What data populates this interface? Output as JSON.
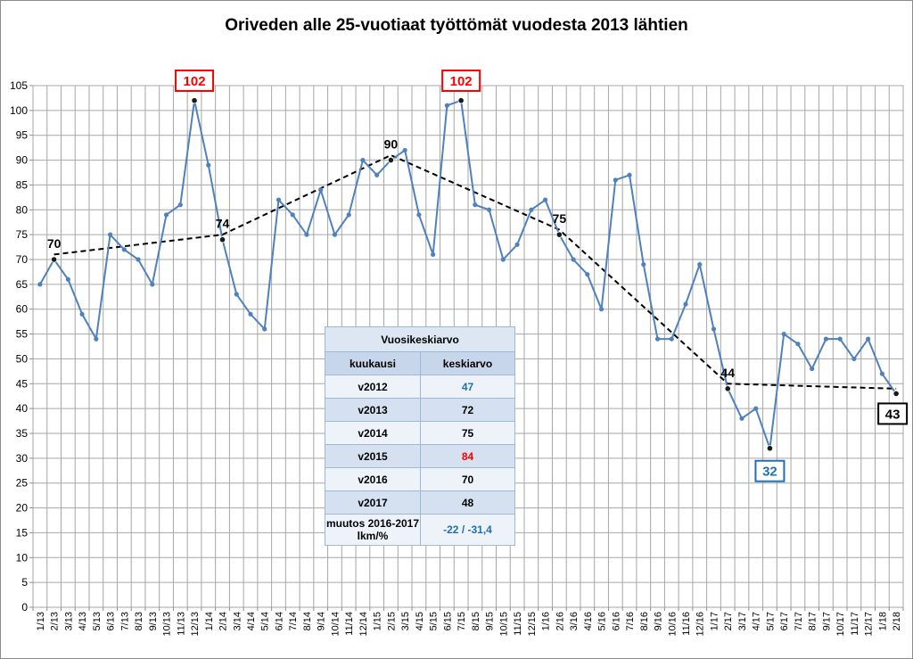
{
  "chart_data": {
    "type": "line",
    "title": "Oriveden alle 25-vuotiaat työttömät vuodesta 2013 lähtien",
    "xlabel": "",
    "ylabel": "",
    "ylim": [
      0,
      105
    ],
    "yticks": [
      0,
      5,
      10,
      15,
      20,
      25,
      30,
      35,
      40,
      45,
      50,
      55,
      60,
      65,
      70,
      75,
      80,
      85,
      90,
      95,
      100,
      105
    ],
    "grid": true,
    "categories": [
      "1/13",
      "2/13",
      "3/13",
      "4/13",
      "5/13",
      "6/13",
      "7/13",
      "8/13",
      "9/13",
      "10/13",
      "11/13",
      "12/13",
      "1/14",
      "2/14",
      "3/14",
      "4/14",
      "5/14",
      "6/14",
      "7/14",
      "8/14",
      "9/14",
      "10/14",
      "11/14",
      "12/14",
      "1/15",
      "2/15",
      "3/15",
      "4/15",
      "5/15",
      "6/15",
      "7/15",
      "8/15",
      "9/15",
      "10/15",
      "11/15",
      "12/15",
      "1/16",
      "2/16",
      "3/16",
      "4/16",
      "5/16",
      "6/16",
      "7/16",
      "8/16",
      "9/16",
      "10/16",
      "11/16",
      "12/16",
      "1/17",
      "2/17",
      "3/17",
      "4/17",
      "5/17",
      "6/17",
      "7/17",
      "8/17",
      "9/17",
      "10/17",
      "11/17",
      "12/17",
      "1/18",
      "2/18"
    ],
    "series": [
      {
        "color": "#4f81bd",
        "values": [
          65,
          70,
          66,
          59,
          54,
          75,
          72,
          70,
          65,
          79,
          81,
          102,
          89,
          74,
          63,
          59,
          56,
          82,
          79,
          75,
          84,
          75,
          79,
          90,
          87,
          90,
          92,
          79,
          71,
          101,
          102,
          81,
          80,
          70,
          73,
          80,
          82,
          75,
          70,
          67,
          60,
          86,
          87,
          69,
          54,
          54,
          61,
          69,
          56,
          44,
          38,
          40,
          32,
          55,
          53,
          48,
          54,
          54,
          50,
          54,
          47,
          43
        ]
      }
    ],
    "trend_line": {
      "style": "dashed",
      "color": "#000000",
      "points": [
        {
          "x": "2/13",
          "y": 71
        },
        {
          "x": "2/14",
          "y": 75
        },
        {
          "x": "2/15",
          "y": 91
        },
        {
          "x": "2/16",
          "y": 76
        },
        {
          "x": "2/17",
          "y": 45
        },
        {
          "x": "2/18",
          "y": 44
        }
      ]
    },
    "annotations": [
      {
        "text": "70",
        "x": "2/13",
        "y": 70,
        "style": "plain"
      },
      {
        "text": "74",
        "x": "2/14",
        "y": 74,
        "style": "plain"
      },
      {
        "text": "90",
        "x": "2/15",
        "y": 90,
        "style": "plain"
      },
      {
        "text": "75",
        "x": "2/16",
        "y": 75,
        "style": "plain"
      },
      {
        "text": "44",
        "x": "2/17",
        "y": 44,
        "style": "plain"
      },
      {
        "text": "102",
        "x": "12/13",
        "y": 102,
        "style": "box",
        "color": "#ff0000"
      },
      {
        "text": "102",
        "x": "7/15",
        "y": 102,
        "style": "box",
        "color": "#ff0000"
      },
      {
        "text": "32",
        "x": "5/17",
        "y": 32,
        "style": "box",
        "color": "#1f6fb2"
      },
      {
        "text": "43",
        "x": "2/18",
        "y": 43,
        "style": "box",
        "color": "#000000"
      }
    ]
  },
  "table": {
    "title": "Vuosikeskiarvo",
    "col1_header": "kuukausi",
    "col2_header": "keskiarvo",
    "rows": [
      {
        "label": "v2012",
        "value": "47",
        "color": "#1f6fb2"
      },
      {
        "label": "v2013",
        "value": "72",
        "color": "#000000"
      },
      {
        "label": "v2014",
        "value": "75",
        "color": "#000000"
      },
      {
        "label": "v2015",
        "value": "84",
        "color": "#ff0000"
      },
      {
        "label": "v2016",
        "value": "70",
        "color": "#000000"
      },
      {
        "label": "v2017",
        "value": "48",
        "color": "#000000"
      }
    ],
    "last_row": {
      "label": "muutos 2016-2017 lkm/%",
      "value": "-22 / -31,4",
      "color": "#1f6fb2"
    }
  }
}
